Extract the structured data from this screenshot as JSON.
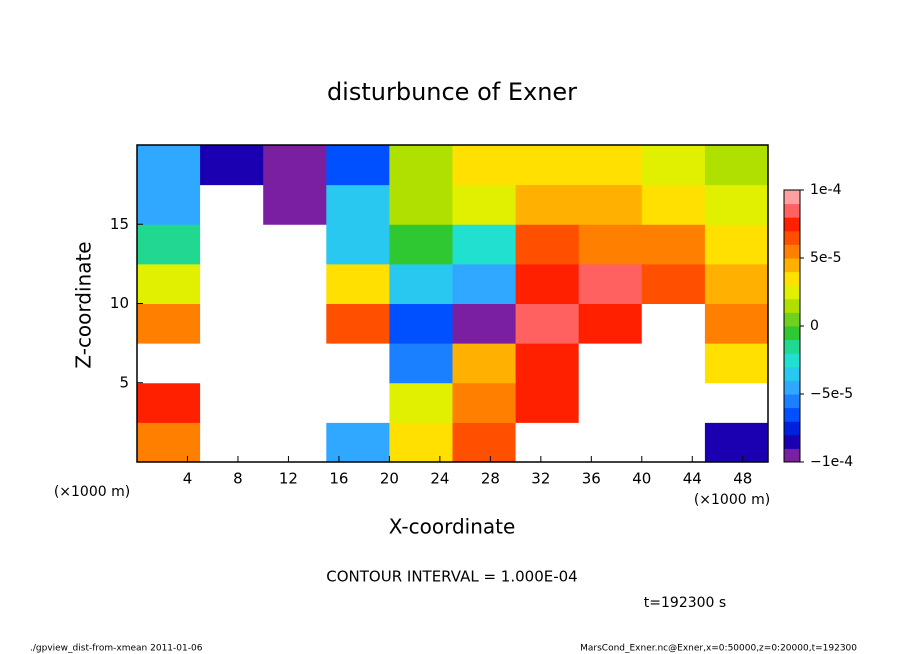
{
  "chart_data": {
    "type": "heatmap",
    "title": "disturbunce of Exner",
    "xlabel": "X-coordinate",
    "ylabel": "Z-coordinate",
    "x_unit_label": "(×1000 m)",
    "y_unit_label": "(×1000 m)",
    "contour_interval": "CONTOUR INTERVAL = 1.000E-04",
    "time_label": "t=192300 s",
    "footer_left": "./gpview_dist-from-xmean  2011-01-06",
    "footer_right": "MarsCond_Exner.nc@Exner,x=0:50000,z=0:20000,t=192300",
    "xlim": [
      0,
      50
    ],
    "xticks": [
      4,
      8,
      12,
      16,
      20,
      24,
      28,
      32,
      36,
      40,
      44,
      48
    ],
    "ylim": [
      0,
      20
    ],
    "yticks": [
      5,
      10,
      15
    ],
    "x": [
      2.5,
      7.5,
      12.5,
      17.5,
      22.5,
      27.5,
      32.5,
      37.5,
      42.5,
      47.5
    ],
    "y": [
      1.25,
      3.75,
      6.25,
      8.75,
      11.25,
      13.75,
      16.25,
      18.75
    ],
    "z": [
      [
        5e-05,
        -0.0002,
        -0.0002,
        -5e-05,
        3e-05,
        6e-05,
        -0.0002,
        -0.0002,
        -0.0002,
        -8e-05
      ],
      [
        7e-05,
        -0.0002,
        -0.0002,
        -0.0002,
        2e-05,
        5e-05,
        7e-05,
        -0.0002,
        -0.0002,
        -0.0002
      ],
      [
        -0.0002,
        -0.0002,
        -0.0002,
        -0.0002,
        -6e-05,
        4e-05,
        7e-05,
        -0.0002,
        -0.0002,
        3e-05
      ],
      [
        5e-05,
        -0.0002,
        -0.0002,
        6e-05,
        -7e-05,
        -9e-05,
        8e-05,
        7e-05,
        -0.0002,
        5e-05
      ],
      [
        2e-05,
        -0.0002,
        -0.0002,
        3e-05,
        -4e-05,
        -5e-05,
        7e-05,
        8e-05,
        6e-05,
        4e-05
      ],
      [
        -2e-05,
        -0.0002,
        -0.0002,
        -4e-05,
        -1e-05,
        -3e-05,
        6e-05,
        5e-05,
        5e-05,
        3e-05
      ],
      [
        -5e-05,
        -0.0002,
        -9e-05,
        -4e-05,
        1e-05,
        2e-05,
        4e-05,
        4e-05,
        3e-05,
        2e-05
      ],
      [
        -5e-05,
        -8e-05,
        -9e-05,
        -7e-05,
        1e-05,
        3e-05,
        3e-05,
        3e-05,
        2e-05,
        1e-05
      ]
    ],
    "clim": [
      -0.0001,
      0.0001
    ],
    "cticks": [
      {
        "value": -0.0001,
        "label": "−1e-4"
      },
      {
        "value": -5e-05,
        "label": "−5e-5"
      },
      0,
      {
        "value": 5e-05,
        "label": "5e-5"
      },
      {
        "value": 0.0001,
        "label": "1e-4"
      }
    ],
    "colors": [
      "#7a1fa0",
      "#1a00b0",
      "#0020e0",
      "#0050ff",
      "#1a80ff",
      "#30a8ff",
      "#28c8f0",
      "#20e0d0",
      "#20d890",
      "#30c830",
      "#70d020",
      "#b0e000",
      "#e0f000",
      "#ffe000",
      "#ffb000",
      "#ff8000",
      "#ff5000",
      "#ff2000",
      "#ff6060",
      "#ffa0a0"
    ],
    "under_color": "#ffffff"
  }
}
